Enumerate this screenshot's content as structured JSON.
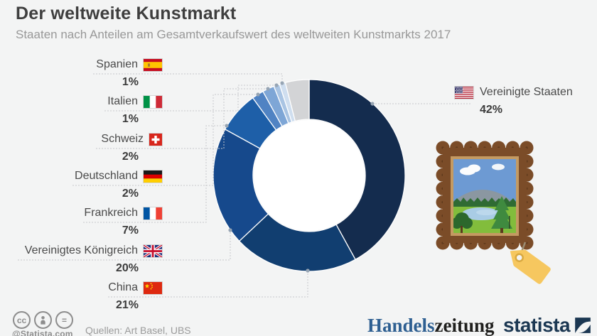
{
  "header": {
    "title": "Der weltweite Kunstmarkt",
    "subtitle": "Staaten nach Anteilen am Gesamtverkaufswert des weltweiten Kunstmarkts 2017"
  },
  "chart_data": {
    "type": "donut",
    "unit": "%",
    "start_angle_deg": 0,
    "direction": "clockwise-from-top",
    "segments": [
      {
        "label": "Vereinigte Staaten",
        "value": 42,
        "percent_label": "42%",
        "color": "#142c4e",
        "flag": "us"
      },
      {
        "label": "China",
        "value": 21,
        "percent_label": "21%",
        "color": "#113e70",
        "flag": "cn"
      },
      {
        "label": "Vereinigtes Königreich",
        "value": 20,
        "percent_label": "20%",
        "color": "#16498c",
        "flag": "gb"
      },
      {
        "label": "Frankreich",
        "value": 7,
        "percent_label": "7%",
        "color": "#1e5fa8",
        "flag": "fr"
      },
      {
        "label": "Deutschland",
        "value": 2,
        "percent_label": "2%",
        "color": "#5083c3",
        "flag": "de"
      },
      {
        "label": "Schweiz",
        "value": 2,
        "percent_label": "2%",
        "color": "#7ea6d6",
        "flag": "ch"
      },
      {
        "label": "Italien",
        "value": 1,
        "percent_label": "1%",
        "color": "#a9c4e3",
        "flag": "it"
      },
      {
        "label": "Spanien",
        "value": 1,
        "percent_label": "1%",
        "color": "#cfdeef",
        "flag": "es"
      },
      {
        "label": "",
        "value": 4,
        "percent_label": "",
        "color": "#d3d4d6",
        "flag": ""
      }
    ]
  },
  "footer": {
    "attribution": "@Statista.com",
    "sources": "Quellen: Art Basel, UBS",
    "handelszeitung": {
      "part1": "Handels",
      "part2": "zeitung"
    },
    "statista_label": "statista"
  },
  "colors": {
    "background": "#f3f4f4",
    "leader_line": "#c7c9cc",
    "leader_dot": "#97a5b4",
    "statista_navy": "#1b3752",
    "handels_blue": "#2e5f91"
  }
}
